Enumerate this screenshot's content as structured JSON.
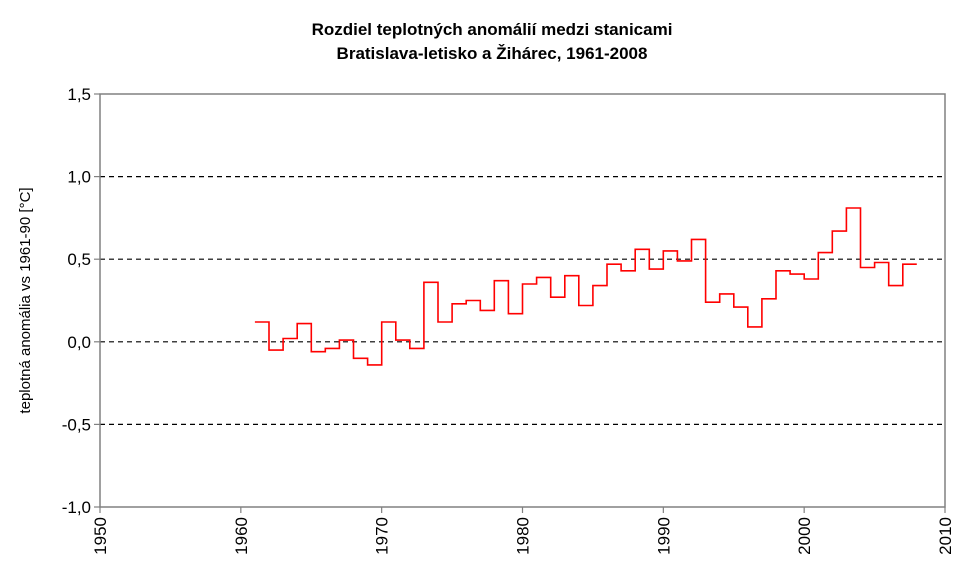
{
  "chart_data": {
    "type": "line",
    "step": true,
    "title_lines": [
      "Rozdiel teplotných anomálií medzi stanicami",
      "Bratislava-letisko a Žihárec, 1961-2008"
    ],
    "xlabel": "",
    "ylabel": "teplotná anomália vs 1961-90 [°C]",
    "xlim": [
      1950,
      2010
    ],
    "ylim": [
      -1.0,
      1.5
    ],
    "x_ticks": [
      1950,
      1960,
      1970,
      1980,
      1990,
      2000,
      2010
    ],
    "x_tick_labels": [
      "1950",
      "1960",
      "1970",
      "1980",
      "1990",
      "2000",
      "2010"
    ],
    "y_ticks": [
      -1.0,
      -0.5,
      0.0,
      0.5,
      1.0,
      1.5
    ],
    "y_tick_labels": [
      "-1,0",
      "-0,5",
      "0,0",
      "0,5",
      "1,0",
      "1,5"
    ],
    "grid": "horizontal-dashed",
    "colors": {
      "series": "#ff0000",
      "axis": "#808080",
      "grid": "#000000"
    },
    "series": [
      {
        "x": [
          1961,
          1962,
          1963,
          1964,
          1965,
          1966,
          1967,
          1968,
          1969,
          1970,
          1971,
          1972,
          1973,
          1974,
          1975,
          1976,
          1977,
          1978,
          1979,
          1980,
          1981,
          1982,
          1983,
          1984,
          1985,
          1986,
          1987,
          1988,
          1989,
          1990,
          1991,
          1992,
          1993,
          1994,
          1995,
          1996,
          1997,
          1998,
          1999,
          2000,
          2001,
          2002,
          2003,
          2004,
          2005,
          2006,
          2007
        ],
        "y": [
          0.12,
          -0.05,
          0.02,
          0.11,
          -0.06,
          -0.04,
          0.01,
          -0.1,
          -0.14,
          0.12,
          0.01,
          -0.04,
          0.36,
          0.12,
          0.23,
          0.25,
          0.19,
          0.37,
          0.17,
          0.35,
          0.39,
          0.27,
          0.4,
          0.22,
          0.34,
          0.47,
          0.43,
          0.56,
          0.44,
          0.55,
          0.49,
          0.62,
          0.24,
          0.29,
          0.21,
          0.09,
          0.26,
          0.43,
          0.41,
          0.38,
          0.54,
          0.67,
          0.81,
          0.45,
          0.48,
          0.34,
          0.47
        ]
      }
    ]
  }
}
